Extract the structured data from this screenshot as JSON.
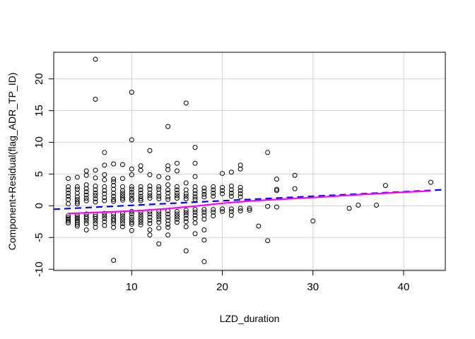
{
  "chart_data": {
    "type": "scatter",
    "title": "",
    "xlabel": "LZD_duration",
    "ylabel": "Component+Residual(flag_ADR_TP_ID)",
    "xlim": [
      1.4,
      44.6
    ],
    "ylim": [
      -10.2,
      24.2
    ],
    "xticks": [
      10,
      20,
      30,
      40
    ],
    "yticks": [
      -10,
      -5,
      0,
      5,
      10,
      15,
      20
    ],
    "grid": true,
    "points": [
      [
        3,
        4.3
      ],
      [
        3,
        3
      ],
      [
        3,
        2.5
      ],
      [
        3,
        2
      ],
      [
        3,
        1.5
      ],
      [
        3,
        1
      ],
      [
        3,
        0.3
      ],
      [
        3,
        -1.6
      ],
      [
        3,
        -1.9
      ],
      [
        3,
        -2.1
      ],
      [
        3,
        -2.4
      ],
      [
        3,
        -2.7
      ],
      [
        4,
        4.5
      ],
      [
        4,
        3
      ],
      [
        4,
        2.6
      ],
      [
        4,
        2
      ],
      [
        4,
        1.4
      ],
      [
        4,
        1
      ],
      [
        4,
        0.6
      ],
      [
        4,
        0.3
      ],
      [
        4,
        -1.5
      ],
      [
        4,
        -1.8
      ],
      [
        4,
        -2
      ],
      [
        4,
        -2.3
      ],
      [
        4,
        -2.6
      ],
      [
        4,
        -2.9
      ],
      [
        4,
        -3.2
      ],
      [
        5,
        5.5
      ],
      [
        5,
        4.8
      ],
      [
        5,
        3.3
      ],
      [
        5,
        2.7
      ],
      [
        5,
        2.2
      ],
      [
        5,
        1.7
      ],
      [
        5,
        1.2
      ],
      [
        5,
        0.8
      ],
      [
        5,
        -1.3
      ],
      [
        5,
        -1.7
      ],
      [
        5,
        -2
      ],
      [
        5,
        -2.4
      ],
      [
        5,
        -2.8
      ],
      [
        5,
        -3.8
      ],
      [
        6,
        23.1
      ],
      [
        6,
        16.8
      ],
      [
        6,
        5.6
      ],
      [
        6,
        4.4
      ],
      [
        6,
        3.1
      ],
      [
        6,
        2.5
      ],
      [
        6,
        2
      ],
      [
        6,
        1.6
      ],
      [
        6,
        1.1
      ],
      [
        6,
        0.6
      ],
      [
        6,
        -1.4
      ],
      [
        6,
        -1.7
      ],
      [
        6,
        -2
      ],
      [
        6,
        -2.4
      ],
      [
        6,
        -2.8
      ],
      [
        6,
        -3.4
      ],
      [
        7,
        8.4
      ],
      [
        7,
        6.4
      ],
      [
        7,
        4.9
      ],
      [
        7,
        4.1
      ],
      [
        7,
        3
      ],
      [
        7,
        2.4
      ],
      [
        7,
        1.9
      ],
      [
        7,
        1.3
      ],
      [
        7,
        0.8
      ],
      [
        7,
        -1.2
      ],
      [
        7,
        -1.6
      ],
      [
        7,
        -2
      ],
      [
        7,
        -2.5
      ],
      [
        7,
        -3.1
      ],
      [
        8,
        6.6
      ],
      [
        8,
        4.2
      ],
      [
        8,
        3.8
      ],
      [
        8,
        3.2
      ],
      [
        8,
        2.6
      ],
      [
        8,
        2
      ],
      [
        8,
        1.5
      ],
      [
        8,
        1
      ],
      [
        8,
        0.7
      ],
      [
        8,
        -1.3
      ],
      [
        8,
        -1.7
      ],
      [
        8,
        -2.1
      ],
      [
        8,
        -2.4
      ],
      [
        8,
        -2.8
      ],
      [
        8,
        -3.4
      ],
      [
        8,
        -8.6
      ],
      [
        9,
        6.5
      ],
      [
        9,
        4.3
      ],
      [
        9,
        3
      ],
      [
        9,
        2.4
      ],
      [
        9,
        2
      ],
      [
        9,
        1.6
      ],
      [
        9,
        1.2
      ],
      [
        9,
        0.9
      ],
      [
        9,
        -1.2
      ],
      [
        9,
        -1.6
      ],
      [
        9,
        -2
      ],
      [
        9,
        -2.4
      ],
      [
        9,
        -2.8
      ],
      [
        9,
        -3.3
      ],
      [
        10,
        17.9
      ],
      [
        10,
        10.4
      ],
      [
        10,
        5.8
      ],
      [
        10,
        4.9
      ],
      [
        10,
        3
      ],
      [
        10,
        2.6
      ],
      [
        10,
        2.1
      ],
      [
        10,
        1.7
      ],
      [
        10,
        1.2
      ],
      [
        10,
        0.9
      ],
      [
        10,
        -0.9
      ],
      [
        10,
        -1.3
      ],
      [
        10,
        -1.8
      ],
      [
        10,
        -2.2
      ],
      [
        10,
        -2.6
      ],
      [
        10,
        -2.9
      ],
      [
        10,
        -3.9
      ],
      [
        11,
        6.3
      ],
      [
        11,
        5.6
      ],
      [
        11,
        3
      ],
      [
        11,
        2.5
      ],
      [
        11,
        2
      ],
      [
        11,
        1.5
      ],
      [
        11,
        1.1
      ],
      [
        11,
        0.8
      ],
      [
        11,
        -1
      ],
      [
        11,
        -1.4
      ],
      [
        11,
        -1.8
      ],
      [
        11,
        -2.2
      ],
      [
        11,
        -2.6
      ],
      [
        11,
        -3
      ],
      [
        12,
        8.7
      ],
      [
        12,
        4.9
      ],
      [
        12,
        3.1
      ],
      [
        12,
        2.6
      ],
      [
        12,
        2
      ],
      [
        12,
        1.6
      ],
      [
        12,
        1.2
      ],
      [
        12,
        -0.9
      ],
      [
        12,
        -1.3
      ],
      [
        12,
        -1.8
      ],
      [
        12,
        -2.3
      ],
      [
        12,
        -2.8
      ],
      [
        12,
        -3.8
      ],
      [
        12,
        -4.6
      ],
      [
        13,
        4.6
      ],
      [
        13,
        3
      ],
      [
        13,
        2.6
      ],
      [
        13,
        2
      ],
      [
        13,
        1.5
      ],
      [
        13,
        1.1
      ],
      [
        13,
        -0.9
      ],
      [
        13,
        -1.3
      ],
      [
        13,
        -1.7
      ],
      [
        13,
        -2.1
      ],
      [
        13,
        -2.6
      ],
      [
        13,
        -3.5
      ],
      [
        13,
        -6
      ],
      [
        14,
        12.5
      ],
      [
        14,
        6.3
      ],
      [
        14,
        5.7
      ],
      [
        14,
        4.4
      ],
      [
        14,
        3.3
      ],
      [
        14,
        2.5
      ],
      [
        14,
        2
      ],
      [
        14,
        1.4
      ],
      [
        14,
        1
      ],
      [
        14,
        -0.8
      ],
      [
        14,
        -1.3
      ],
      [
        14,
        -1.8
      ],
      [
        14,
        -2.3
      ],
      [
        14,
        -2.9
      ],
      [
        14,
        -3.4
      ],
      [
        14,
        -4.6
      ],
      [
        15,
        6.7
      ],
      [
        15,
        5.5
      ],
      [
        15,
        3
      ],
      [
        15,
        2.5
      ],
      [
        15,
        2
      ],
      [
        15,
        1.6
      ],
      [
        15,
        1.2
      ],
      [
        15,
        -0.9
      ],
      [
        15,
        -1.3
      ],
      [
        15,
        -1.7
      ],
      [
        15,
        -2.1
      ],
      [
        15,
        -2.6
      ],
      [
        16,
        16.2
      ],
      [
        16,
        3.6
      ],
      [
        16,
        2.5
      ],
      [
        16,
        1.9
      ],
      [
        16,
        1.5
      ],
      [
        16,
        1.1
      ],
      [
        16,
        -0.7
      ],
      [
        16,
        -1.1
      ],
      [
        16,
        -1.5
      ],
      [
        16,
        -2
      ],
      [
        16,
        -2.5
      ],
      [
        16,
        -3.3
      ],
      [
        16,
        -7.1
      ],
      [
        17,
        9.2
      ],
      [
        17,
        6.7
      ],
      [
        17,
        4.6
      ],
      [
        17,
        3
      ],
      [
        17,
        2.4
      ],
      [
        17,
        1.9
      ],
      [
        17,
        1.4
      ],
      [
        17,
        1
      ],
      [
        17,
        -0.6
      ],
      [
        17,
        -1
      ],
      [
        17,
        -1.5
      ],
      [
        17,
        -2
      ],
      [
        17,
        -2.7
      ],
      [
        17,
        -4.4
      ],
      [
        18,
        2.8
      ],
      [
        18,
        2.3
      ],
      [
        18,
        1.8
      ],
      [
        18,
        1.4
      ],
      [
        18,
        -0.6
      ],
      [
        18,
        -1
      ],
      [
        18,
        -1.5
      ],
      [
        18,
        -2.1
      ],
      [
        18,
        -3.8
      ],
      [
        18,
        -5.4
      ],
      [
        18,
        -8.8
      ],
      [
        19,
        3
      ],
      [
        19,
        2.5
      ],
      [
        19,
        2
      ],
      [
        19,
        1.5
      ],
      [
        19,
        -0.6
      ],
      [
        19,
        -1
      ],
      [
        19,
        -1.6
      ],
      [
        20,
        5.1
      ],
      [
        20,
        2.9
      ],
      [
        20,
        2.4
      ],
      [
        20,
        1.9
      ],
      [
        20,
        -0.5
      ],
      [
        20,
        -0.9
      ],
      [
        21,
        5.3
      ],
      [
        21,
        3.1
      ],
      [
        21,
        2.5
      ],
      [
        21,
        2
      ],
      [
        21,
        1.5
      ],
      [
        21,
        -0.5
      ],
      [
        21,
        -0.9
      ],
      [
        21,
        -1.5
      ],
      [
        22,
        6.4
      ],
      [
        22,
        5.8
      ],
      [
        22,
        2.9
      ],
      [
        22,
        2.4
      ],
      [
        22,
        1.9
      ],
      [
        22,
        1.4
      ],
      [
        22,
        -0.4
      ],
      [
        22,
        -0.8
      ],
      [
        23,
        -0.4
      ],
      [
        23,
        -0.7
      ],
      [
        24,
        -3.2
      ],
      [
        25,
        8.4
      ],
      [
        25,
        -0.1
      ],
      [
        25,
        -5.5
      ],
      [
        26,
        4.2
      ],
      [
        26,
        2.6
      ],
      [
        26,
        2.4
      ],
      [
        26,
        -0.2
      ],
      [
        28,
        4.8
      ],
      [
        28,
        2.7
      ],
      [
        30,
        -2.4
      ],
      [
        34,
        -0.4
      ],
      [
        35,
        0.1
      ],
      [
        37,
        0.1
      ],
      [
        38,
        3.2
      ],
      [
        43,
        3.7
      ]
    ],
    "series": [
      {
        "type": "dashed-line",
        "color": "#0000FF",
        "x": [
          1.4,
          44.6
        ],
        "y": [
          -0.55,
          2.55
        ]
      },
      {
        "type": "smooth-line",
        "color": "#FF00FF",
        "x": [
          3,
          5,
          8,
          11,
          14,
          17,
          20,
          23,
          26,
          30,
          35,
          40,
          43
        ],
        "y": [
          -1.2,
          -1.1,
          -0.95,
          -0.75,
          -0.45,
          -0.05,
          0.4,
          0.75,
          1.0,
          1.3,
          1.75,
          2.15,
          2.35
        ]
      }
    ]
  }
}
